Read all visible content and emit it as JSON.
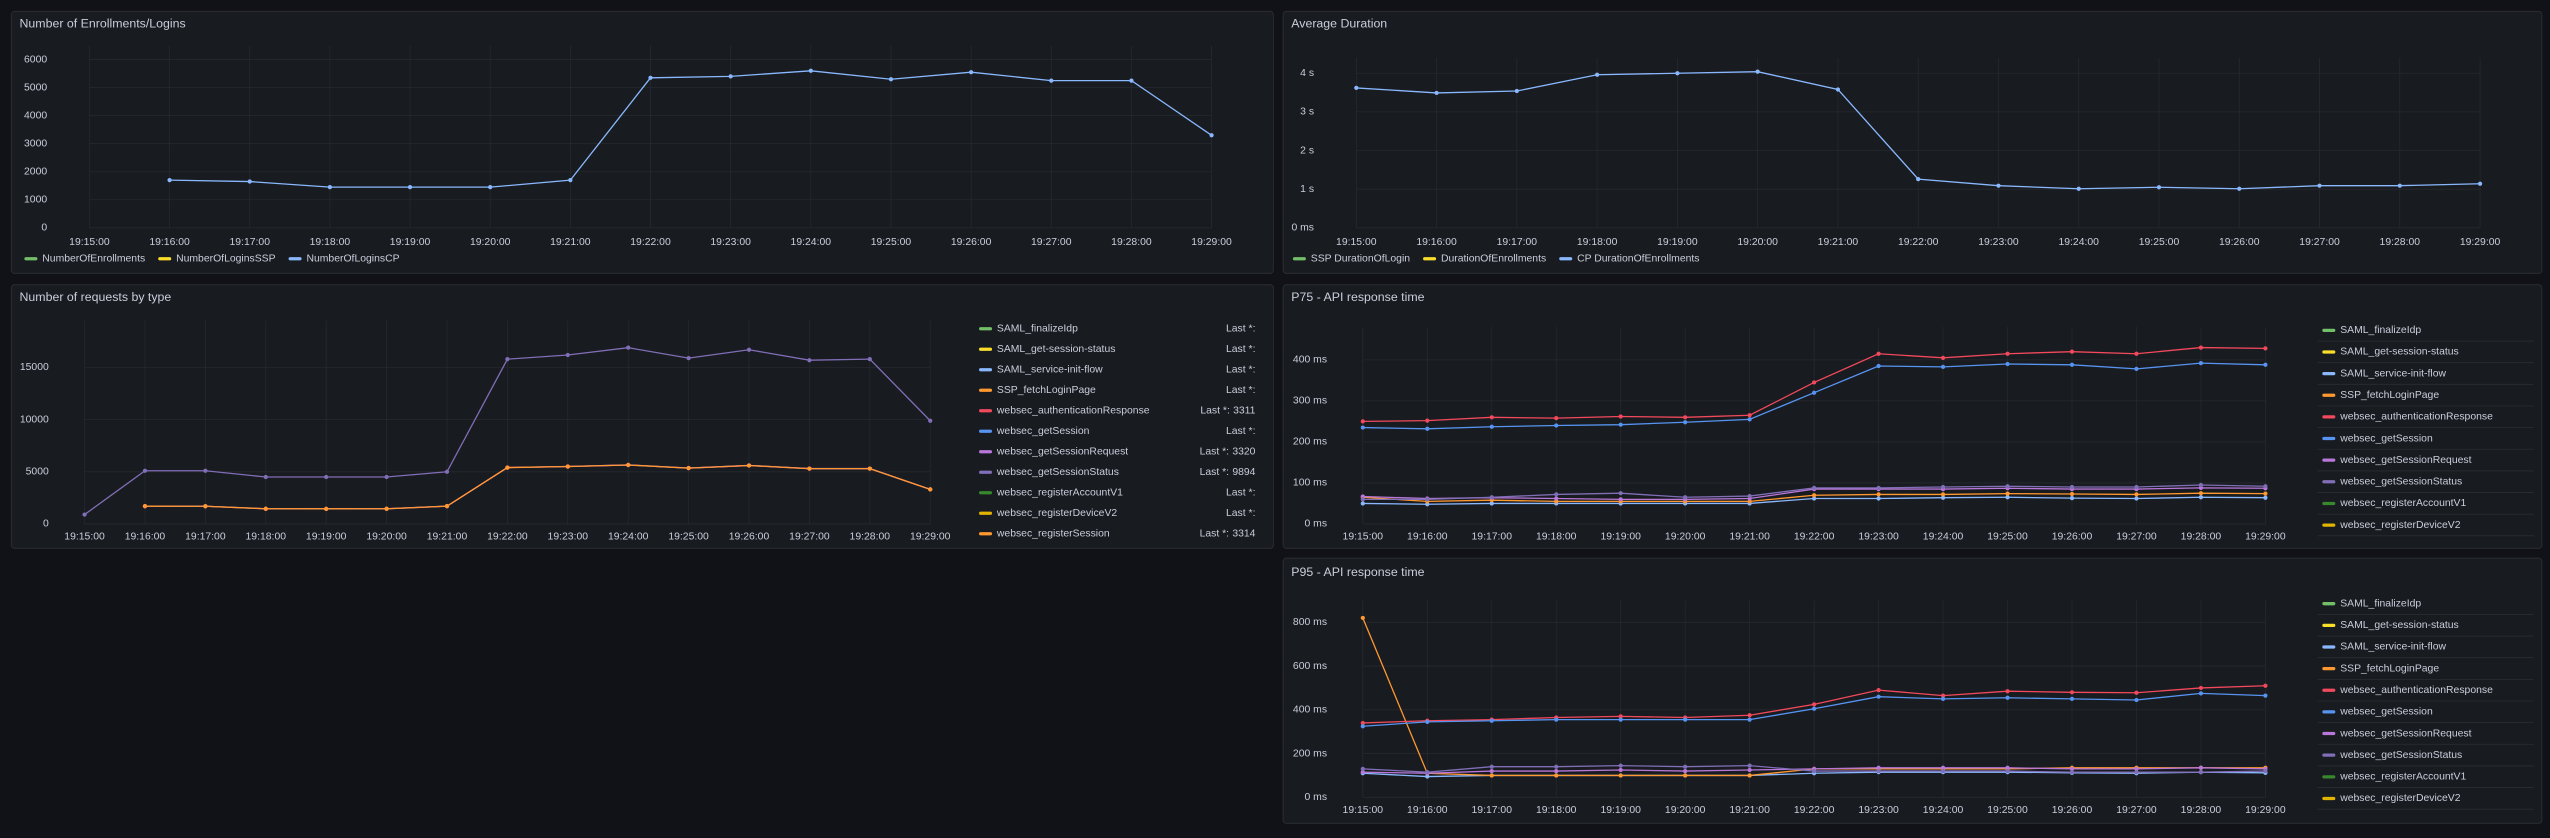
{
  "chart_data": [
    {
      "type": "line",
      "title": "Number of Enrollments/Logins",
      "legend": "bottom",
      "grid": true,
      "categories": [
        "19:15:00",
        "19:16:00",
        "19:17:00",
        "19:18:00",
        "19:19:00",
        "19:20:00",
        "19:21:00",
        "19:22:00",
        "19:23:00",
        "19:24:00",
        "19:25:00",
        "19:26:00",
        "19:27:00",
        "19:28:00",
        "19:29:00"
      ],
      "ylim": [
        0,
        6500
      ],
      "yticks": [
        0,
        1000,
        2000,
        3000,
        4000,
        5000,
        6000
      ],
      "series": [
        {
          "name": "NumberOfEnrollments",
          "color": "#73bf69",
          "values": [
            null,
            null,
            null,
            null,
            null,
            null,
            null,
            null,
            null,
            null,
            null,
            null,
            null,
            null,
            null
          ]
        },
        {
          "name": "NumberOfLoginsSSP",
          "color": "#fade2a",
          "values": [
            null,
            null,
            null,
            null,
            null,
            null,
            null,
            null,
            null,
            null,
            null,
            null,
            null,
            null,
            null
          ]
        },
        {
          "name": "NumberOfLoginsCP",
          "color": "#8ab8ff",
          "values": [
            null,
            1700,
            1650,
            1450,
            1450,
            1450,
            1700,
            5350,
            5400,
            5600,
            5300,
            5550,
            5250,
            5250,
            3300
          ]
        }
      ]
    },
    {
      "type": "line",
      "title": "Average Duration",
      "legend": "bottom",
      "grid": true,
      "categories": [
        "19:15:00",
        "19:16:00",
        "19:17:00",
        "19:18:00",
        "19:19:00",
        "19:20:00",
        "19:21:00",
        "19:22:00",
        "19:23:00",
        "19:24:00",
        "19:25:00",
        "19:26:00",
        "19:27:00",
        "19:28:00",
        "19:29:00"
      ],
      "ylim": [
        0,
        4.4
      ],
      "yticks": [
        {
          "value": 0,
          "label": "0 ms"
        },
        {
          "value": 1,
          "label": "1 s"
        },
        {
          "value": 2,
          "label": "2 s"
        },
        {
          "value": 3,
          "label": "3 s"
        },
        {
          "value": 4,
          "label": "4 s"
        }
      ],
      "series": [
        {
          "name": "SSP DurationOfLogin",
          "color": "#73bf69",
          "values": [
            null,
            null,
            null,
            null,
            null,
            null,
            null,
            null,
            null,
            null,
            null,
            null,
            null,
            null,
            null
          ]
        },
        {
          "name": "DurationOfEnrollments",
          "color": "#fade2a",
          "values": [
            null,
            null,
            null,
            null,
            null,
            null,
            null,
            null,
            null,
            null,
            null,
            null,
            null,
            null,
            null
          ]
        },
        {
          "name": "CP DurationOfEnrollments",
          "color": "#8ab8ff",
          "values": [
            3.62,
            3.49,
            3.54,
            3.96,
            4.0,
            4.04,
            3.58,
            1.26,
            1.09,
            1.01,
            1.05,
            1.01,
            1.09,
            1.09,
            1.14
          ]
        }
      ]
    },
    {
      "type": "line",
      "title": "Number of requests by type",
      "legend": "right-table",
      "legend_stat": "Last *:",
      "grid": true,
      "categories": [
        "19:15:00",
        "19:16:00",
        "19:17:00",
        "19:18:00",
        "19:19:00",
        "19:20:00",
        "19:21:00",
        "19:22:00",
        "19:23:00",
        "19:24:00",
        "19:25:00",
        "19:26:00",
        "19:27:00",
        "19:28:00",
        "19:29:00"
      ],
      "ylim": [
        0,
        19500
      ],
      "yticks": [
        0,
        5000,
        10000,
        15000
      ],
      "series": [
        {
          "name": "SAML_finalizeIdp",
          "color": "#73bf69",
          "values": [
            null,
            null,
            null,
            null,
            null,
            null,
            null,
            null,
            null,
            null,
            null,
            null,
            null,
            null,
            null
          ]
        },
        {
          "name": "SAML_get-session-status",
          "color": "#fade2a",
          "values": [
            null,
            null,
            null,
            null,
            null,
            null,
            null,
            null,
            null,
            null,
            null,
            null,
            null,
            null,
            null
          ]
        },
        {
          "name": "SAML_service-init-flow",
          "color": "#8ab8ff",
          "values": [
            null,
            null,
            null,
            null,
            null,
            null,
            null,
            null,
            null,
            null,
            null,
            null,
            null,
            null,
            null
          ]
        },
        {
          "name": "SSP_fetchLoginPage",
          "color": "#ff9830",
          "values": [
            null,
            null,
            null,
            null,
            null,
            null,
            null,
            null,
            null,
            null,
            null,
            null,
            null,
            null,
            null
          ]
        },
        {
          "name": "websec_authenticationResponse",
          "color": "#f2495c",
          "values": [
            null,
            1700,
            1700,
            1450,
            1450,
            1450,
            1700,
            5400,
            5500,
            5650,
            5350,
            5600,
            5300,
            5300,
            3311
          ]
        },
        {
          "name": "websec_getSession",
          "color": "#5794f2",
          "values": [
            null,
            null,
            null,
            null,
            null,
            null,
            null,
            null,
            null,
            null,
            null,
            null,
            null,
            null,
            null
          ]
        },
        {
          "name": "websec_getSessionRequest",
          "color": "#b877d9",
          "values": [
            null,
            1710,
            1700,
            1460,
            1450,
            1460,
            1710,
            5410,
            5510,
            5660,
            5360,
            5610,
            5310,
            5310,
            3320
          ]
        },
        {
          "name": "websec_getSessionStatus",
          "color": "#806eb7",
          "values": [
            900,
            5100,
            5100,
            4500,
            4500,
            4500,
            5000,
            15800,
            16200,
            16900,
            15900,
            16700,
            15700,
            15800,
            9894
          ]
        },
        {
          "name": "websec_registerAccountV1",
          "color": "#37872d",
          "values": [
            null,
            null,
            null,
            null,
            null,
            null,
            null,
            null,
            null,
            null,
            null,
            null,
            null,
            null,
            null
          ]
        },
        {
          "name": "websec_registerDeviceV2",
          "color": "#e0b400",
          "values": [
            null,
            null,
            null,
            null,
            null,
            null,
            null,
            null,
            null,
            null,
            null,
            null,
            null,
            null,
            null
          ]
        },
        {
          "name": "websec_registerSession",
          "color": "#ff9830",
          "values": [
            null,
            1705,
            1700,
            1455,
            1450,
            1455,
            1705,
            5405,
            5505,
            5655,
            5355,
            5605,
            5305,
            5305,
            3314
          ]
        }
      ]
    },
    {
      "type": "line",
      "title": "P75 - API response time",
      "legend": "right-list",
      "grid": true,
      "categories": [
        "19:15:00",
        "19:16:00",
        "19:17:00",
        "19:18:00",
        "19:19:00",
        "19:20:00",
        "19:21:00",
        "19:22:00",
        "19:23:00",
        "19:24:00",
        "19:25:00",
        "19:26:00",
        "19:27:00",
        "19:28:00",
        "19:29:00"
      ],
      "ylim": [
        0,
        480
      ],
      "yticks": [
        {
          "value": 0,
          "label": "0 ms"
        },
        {
          "value": 100,
          "label": "100 ms"
        },
        {
          "value": 200,
          "label": "200 ms"
        },
        {
          "value": 300,
          "label": "300 ms"
        },
        {
          "value": 400,
          "label": "400 ms"
        }
      ],
      "series": [
        {
          "name": "SAML_finalizeIdp",
          "color": "#73bf69",
          "values": [
            null,
            null,
            null,
            null,
            null,
            null,
            null,
            null,
            null,
            null,
            null,
            null,
            null,
            null,
            null
          ]
        },
        {
          "name": "SAML_get-session-status",
          "color": "#fade2a",
          "values": [
            null,
            null,
            null,
            null,
            null,
            null,
            null,
            null,
            null,
            null,
            null,
            null,
            null,
            null,
            null
          ]
        },
        {
          "name": "SAML_service-init-flow",
          "color": "#8ab8ff",
          "values": [
            50,
            48,
            50,
            50,
            50,
            50,
            50,
            62,
            62,
            64,
            65,
            63,
            62,
            65,
            64
          ]
        },
        {
          "name": "SSP_fetchLoginPage",
          "color": "#ff9830",
          "values": [
            65,
            55,
            58,
            55,
            55,
            55,
            55,
            70,
            72,
            72,
            74,
            73,
            72,
            75,
            74
          ]
        },
        {
          "name": "websec_authenticationResponse",
          "color": "#f2495c",
          "values": [
            250,
            252,
            260,
            258,
            262,
            260,
            265,
            345,
            415,
            405,
            415,
            420,
            415,
            430,
            428
          ]
        },
        {
          "name": "websec_getSession",
          "color": "#5794f2",
          "values": [
            235,
            232,
            237,
            240,
            242,
            248,
            255,
            320,
            385,
            383,
            390,
            388,
            378,
            392,
            388
          ]
        },
        {
          "name": "websec_getSessionRequest",
          "color": "#b877d9",
          "values": [
            67,
            62,
            64,
            62,
            60,
            60,
            62,
            85,
            85,
            85,
            87,
            85,
            85,
            88,
            87
          ]
        },
        {
          "name": "websec_getSessionStatus",
          "color": "#806eb7",
          "values": [
            60,
            60,
            65,
            72,
            75,
            65,
            68,
            88,
            88,
            90,
            92,
            90,
            90,
            95,
            92
          ]
        },
        {
          "name": "websec_registerAccountV1",
          "color": "#37872d",
          "values": [
            null,
            null,
            null,
            null,
            null,
            null,
            null,
            null,
            null,
            null,
            null,
            null,
            null,
            null,
            null
          ]
        },
        {
          "name": "websec_registerDeviceV2",
          "color": "#e0b400",
          "values": [
            null,
            null,
            null,
            null,
            null,
            null,
            null,
            null,
            null,
            null,
            null,
            null,
            null,
            null,
            null
          ]
        }
      ]
    },
    {
      "type": "line",
      "title": "P95 - API response time",
      "legend": "right-list",
      "grid": true,
      "categories": [
        "19:15:00",
        "19:16:00",
        "19:17:00",
        "19:18:00",
        "19:19:00",
        "19:20:00",
        "19:21:00",
        "19:22:00",
        "19:23:00",
        "19:24:00",
        "19:25:00",
        "19:26:00",
        "19:27:00",
        "19:28:00",
        "19:29:00"
      ],
      "ylim": [
        0,
        900
      ],
      "yticks": [
        {
          "value": 0,
          "label": "0 ms"
        },
        {
          "value": 200,
          "label": "200 ms"
        },
        {
          "value": 400,
          "label": "400 ms"
        },
        {
          "value": 600,
          "label": "600 ms"
        },
        {
          "value": 800,
          "label": "800 ms"
        }
      ],
      "series": [
        {
          "name": "SAML_finalizeIdp",
          "color": "#73bf69",
          "values": [
            null,
            null,
            null,
            null,
            null,
            null,
            null,
            null,
            null,
            null,
            null,
            null,
            null,
            null,
            null
          ]
        },
        {
          "name": "SAML_get-session-status",
          "color": "#fade2a",
          "values": [
            null,
            null,
            null,
            null,
            null,
            null,
            null,
            null,
            null,
            null,
            null,
            null,
            null,
            null,
            null
          ]
        },
        {
          "name": "SAML_service-init-flow",
          "color": "#8ab8ff",
          "values": [
            110,
            95,
            100,
            100,
            100,
            100,
            100,
            110,
            115,
            115,
            115,
            112,
            110,
            115,
            112
          ]
        },
        {
          "name": "SSP_fetchLoginPage",
          "color": "#ff9830",
          "values": [
            820,
            110,
            100,
            100,
            100,
            100,
            100,
            130,
            130,
            130,
            130,
            135,
            135,
            135,
            135
          ]
        },
        {
          "name": "websec_authenticationResponse",
          "color": "#f2495c",
          "values": [
            340,
            350,
            355,
            365,
            370,
            365,
            375,
            425,
            490,
            465,
            485,
            480,
            478,
            500,
            510
          ]
        },
        {
          "name": "websec_getSession",
          "color": "#5794f2",
          "values": [
            325,
            345,
            350,
            355,
            355,
            355,
            355,
            405,
            460,
            450,
            455,
            450,
            445,
            475,
            465
          ]
        },
        {
          "name": "websec_getSessionRequest",
          "color": "#b877d9",
          "values": [
            115,
            110,
            120,
            120,
            125,
            120,
            125,
            130,
            135,
            135,
            135,
            130,
            130,
            135,
            130
          ]
        },
        {
          "name": "websec_getSessionStatus",
          "color": "#806eb7",
          "values": [
            130,
            115,
            140,
            140,
            145,
            140,
            145,
            120,
            120,
            120,
            120,
            115,
            115,
            115,
            120
          ]
        },
        {
          "name": "websec_registerAccountV1",
          "color": "#37872d",
          "values": [
            null,
            null,
            null,
            null,
            null,
            null,
            null,
            null,
            null,
            null,
            null,
            null,
            null,
            null,
            null
          ]
        },
        {
          "name": "websec_registerDeviceV2",
          "color": "#e0b400",
          "values": [
            null,
            null,
            null,
            null,
            null,
            null,
            null,
            null,
            null,
            null,
            null,
            null,
            null,
            null,
            null
          ]
        }
      ]
    }
  ]
}
